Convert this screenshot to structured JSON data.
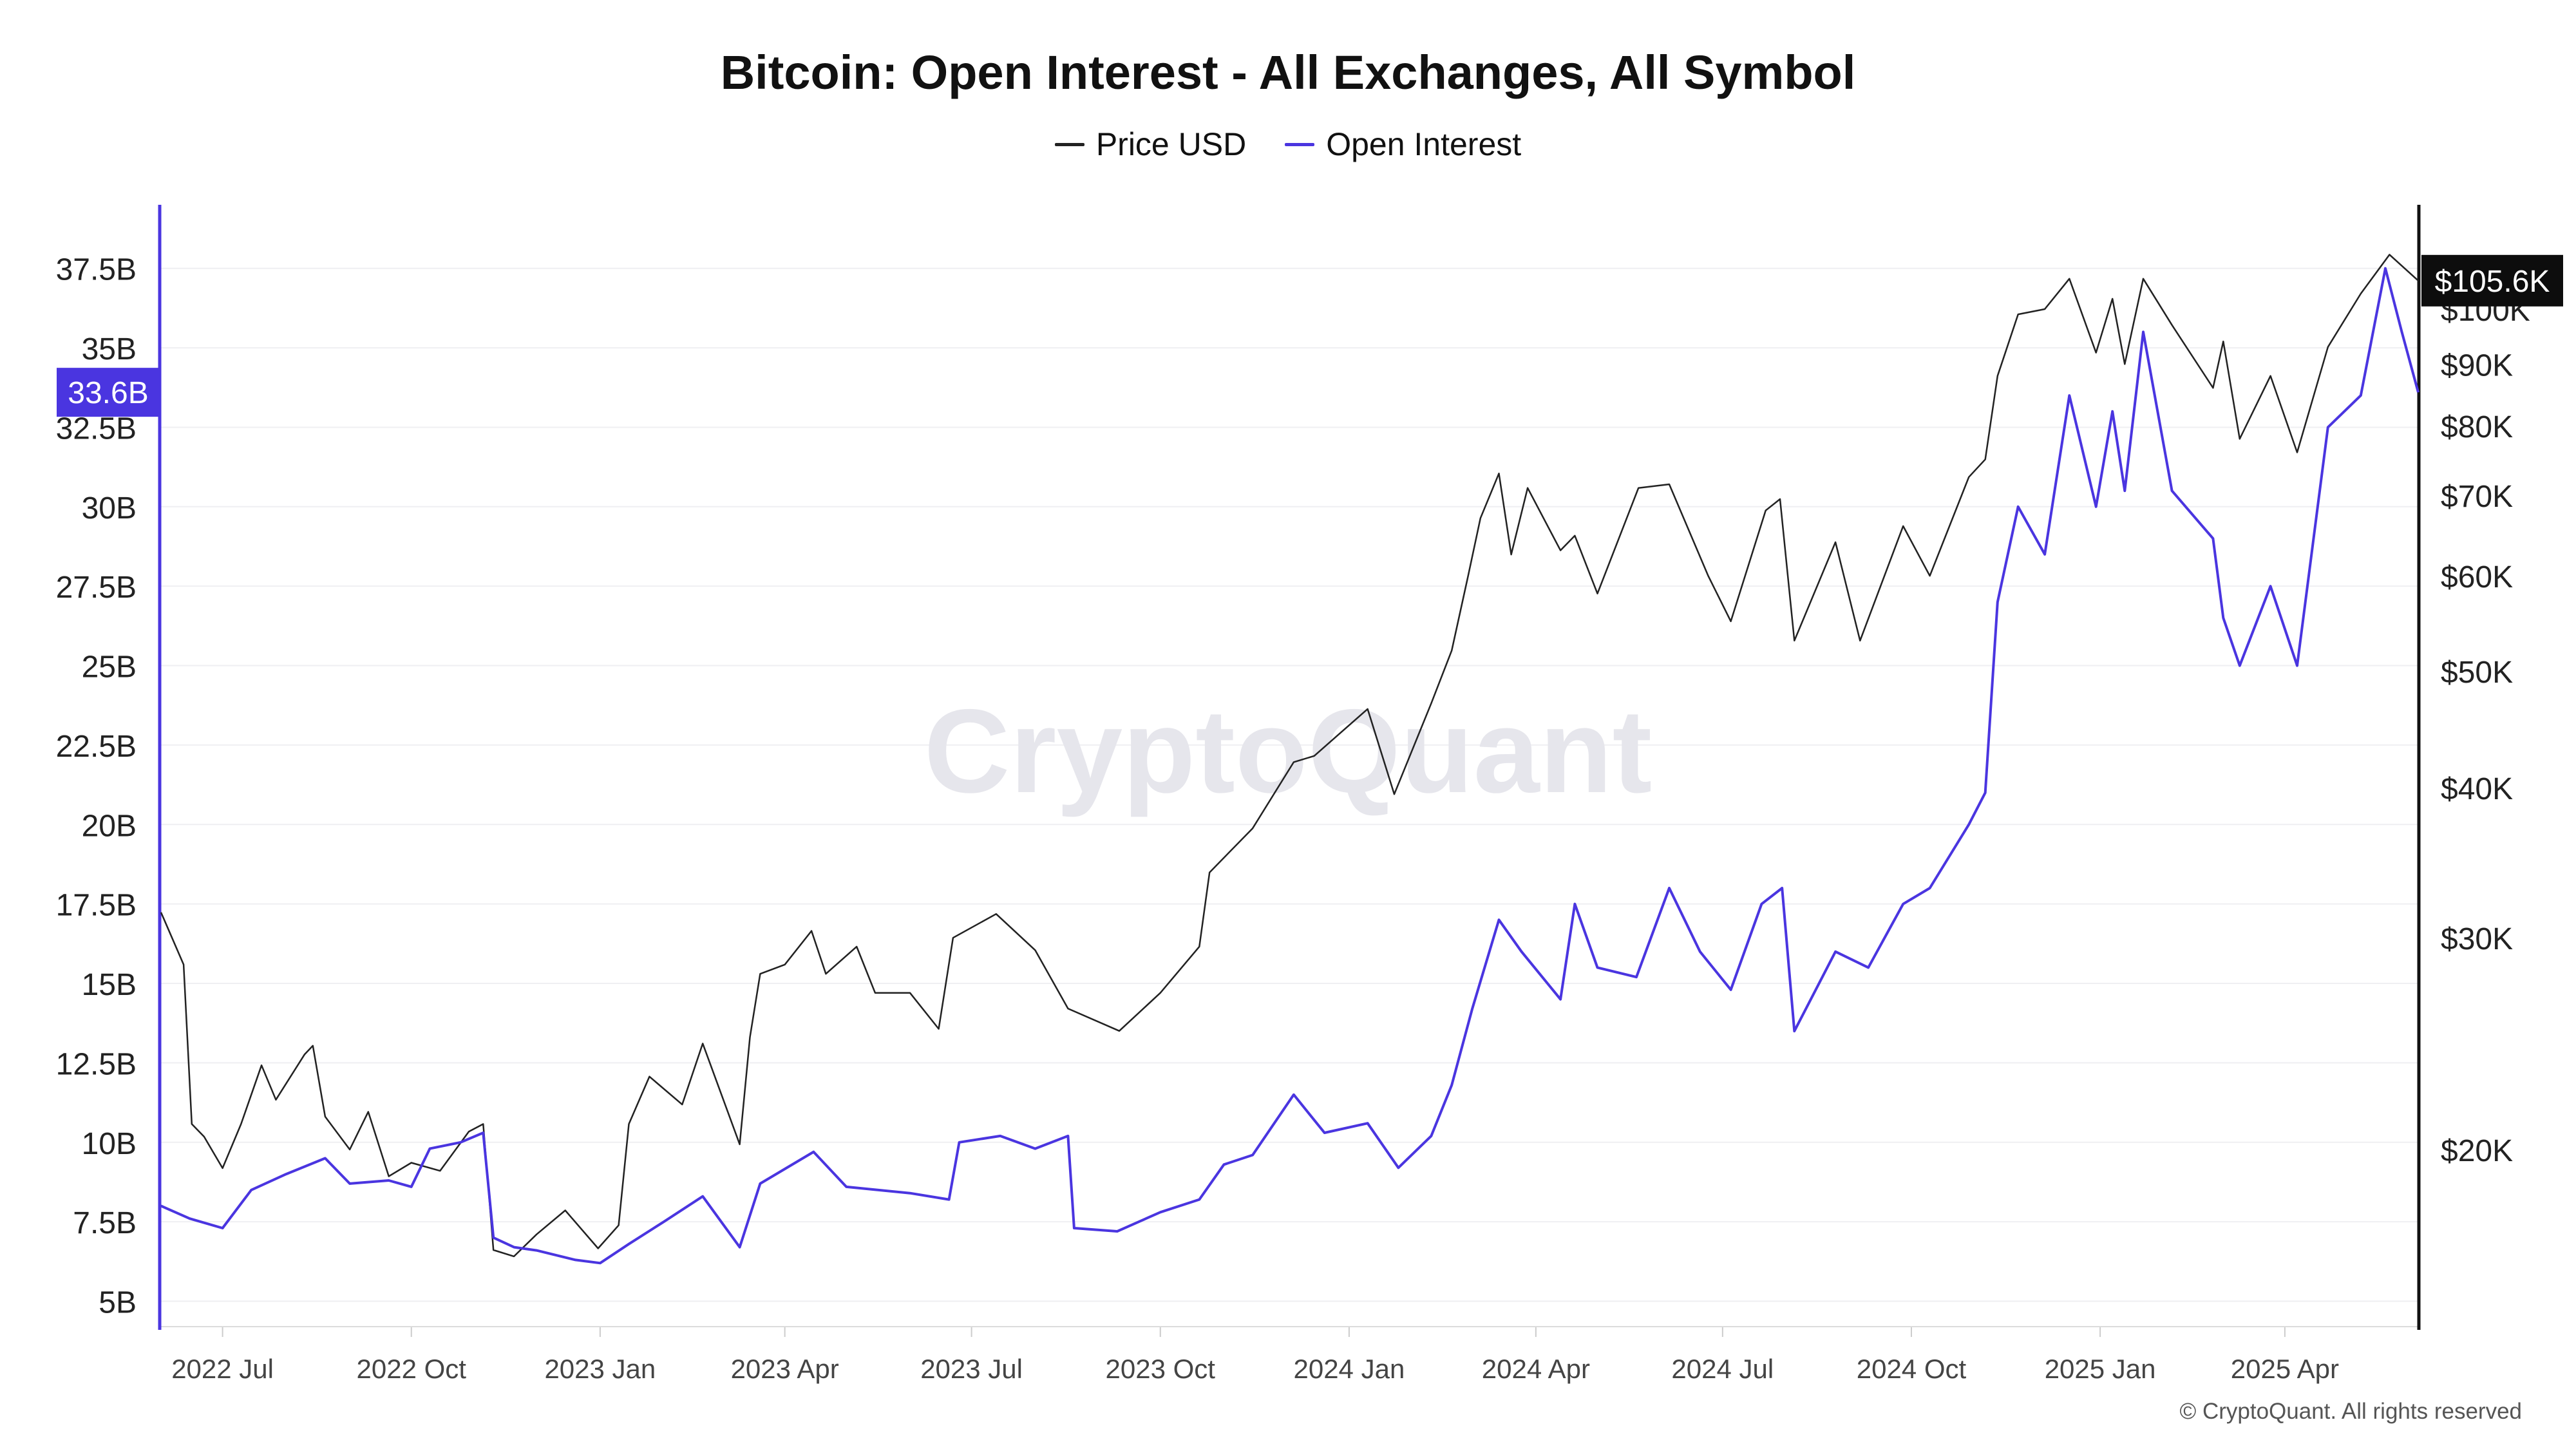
{
  "title": "Bitcoin: Open Interest - All Exchanges, All Symbol",
  "legend": [
    {
      "label": "Price USD",
      "color": "#222222"
    },
    {
      "label": "Open Interest",
      "color": "#4a35e0"
    }
  ],
  "footer": "© CryptoQuant. All rights reserved",
  "watermark": "CryptoQuant",
  "chart_data": {
    "type": "line",
    "x_ticks": [
      "2022 Jul",
      "2022 Oct",
      "2023 Jan",
      "2023 Apr",
      "2023 Jul",
      "2023 Oct",
      "2024 Jan",
      "2024 Apr",
      "2024 Jul",
      "2024 Oct",
      "2025 Jan",
      "2025 Apr"
    ],
    "x_range": [
      "2022-06-01",
      "2025-06-05"
    ],
    "left_axis": {
      "label": "",
      "ticks": [
        "5B",
        "7.5B",
        "10B",
        "12.5B",
        "15B",
        "17.5B",
        "20B",
        "22.5B",
        "25B",
        "27.5B",
        "30B",
        "32.5B",
        "35B",
        "37.5B"
      ],
      "range_billion": [
        4.2,
        39.5
      ],
      "current": "33.6B"
    },
    "right_axis": {
      "label": "",
      "scale": "log",
      "ticks": [
        "$20K",
        "$30K",
        "$40K",
        "$50K",
        "$60K",
        "$70K",
        "$80K",
        "$90K",
        "$100K"
      ],
      "current": "$105.6K"
    },
    "grid": true,
    "legend_position": "top-center",
    "series": [
      {
        "name": "Price USD",
        "axis": "right",
        "color": "#222222",
        "unit": "USD",
        "points": [
          [
            "2022-06-01",
            31500
          ],
          [
            "2022-06-12",
            28500
          ],
          [
            "2022-06-16",
            21000
          ],
          [
            "2022-06-22",
            20500
          ],
          [
            "2022-07-01",
            19300
          ],
          [
            "2022-07-10",
            21000
          ],
          [
            "2022-07-20",
            23500
          ],
          [
            "2022-07-27",
            22000
          ],
          [
            "2022-08-10",
            24000
          ],
          [
            "2022-08-14",
            24400
          ],
          [
            "2022-08-20",
            21300
          ],
          [
            "2022-09-01",
            20000
          ],
          [
            "2022-09-10",
            21500
          ],
          [
            "2022-09-20",
            19000
          ],
          [
            "2022-10-01",
            19500
          ],
          [
            "2022-10-15",
            19200
          ],
          [
            "2022-10-29",
            20700
          ],
          [
            "2022-11-05",
            21000
          ],
          [
            "2022-11-10",
            16500
          ],
          [
            "2022-11-20",
            16300
          ],
          [
            "2022-12-01",
            17000
          ],
          [
            "2022-12-15",
            17800
          ],
          [
            "2022-12-31",
            16550
          ],
          [
            "2023-01-10",
            17300
          ],
          [
            "2023-01-15",
            21000
          ],
          [
            "2023-01-25",
            23000
          ],
          [
            "2023-02-10",
            21800
          ],
          [
            "2023-02-20",
            24500
          ],
          [
            "2023-03-10",
            20200
          ],
          [
            "2023-03-15",
            24800
          ],
          [
            "2023-03-20",
            28000
          ],
          [
            "2023-04-01",
            28500
          ],
          [
            "2023-04-14",
            30400
          ],
          [
            "2023-04-21",
            28000
          ],
          [
            "2023-05-06",
            29500
          ],
          [
            "2023-05-15",
            27000
          ],
          [
            "2023-06-01",
            27000
          ],
          [
            "2023-06-15",
            25200
          ],
          [
            "2023-06-22",
            30000
          ],
          [
            "2023-07-13",
            31400
          ],
          [
            "2023-08-01",
            29300
          ],
          [
            "2023-08-17",
            26200
          ],
          [
            "2023-09-11",
            25100
          ],
          [
            "2023-10-01",
            27000
          ],
          [
            "2023-10-20",
            29500
          ],
          [
            "2023-10-25",
            34000
          ],
          [
            "2023-11-15",
            37000
          ],
          [
            "2023-12-05",
            42000
          ],
          [
            "2023-12-15",
            42500
          ],
          [
            "2024-01-10",
            46500
          ],
          [
            "2024-01-23",
            39500
          ],
          [
            "2024-02-10",
            47000
          ],
          [
            "2024-02-20",
            52000
          ],
          [
            "2024-02-28",
            60000
          ],
          [
            "2024-03-05",
            67000
          ],
          [
            "2024-03-14",
            73000
          ],
          [
            "2024-03-20",
            62500
          ],
          [
            "2024-03-28",
            71000
          ],
          [
            "2024-04-13",
            63000
          ],
          [
            "2024-04-20",
            64800
          ],
          [
            "2024-05-01",
            58000
          ],
          [
            "2024-05-21",
            71000
          ],
          [
            "2024-06-05",
            71500
          ],
          [
            "2024-06-24",
            60000
          ],
          [
            "2024-07-05",
            55000
          ],
          [
            "2024-07-22",
            68000
          ],
          [
            "2024-07-29",
            69500
          ],
          [
            "2024-08-05",
            53000
          ],
          [
            "2024-08-25",
            64000
          ],
          [
            "2024-09-06",
            53000
          ],
          [
            "2024-09-27",
            66000
          ],
          [
            "2024-10-10",
            60000
          ],
          [
            "2024-10-29",
            72500
          ],
          [
            "2024-11-06",
            75000
          ],
          [
            "2024-11-12",
            88000
          ],
          [
            "2024-11-22",
            99000
          ],
          [
            "2024-12-05",
            100000
          ],
          [
            "2024-12-17",
            106000
          ],
          [
            "2024-12-30",
            92000
          ],
          [
            "2025-01-07",
            102000
          ],
          [
            "2025-01-13",
            90000
          ],
          [
            "2025-01-22",
            106000
          ],
          [
            "2025-02-05",
            97000
          ],
          [
            "2025-02-25",
            86000
          ],
          [
            "2025-03-02",
            94000
          ],
          [
            "2025-03-10",
            78000
          ],
          [
            "2025-03-25",
            88000
          ],
          [
            "2025-04-07",
            76000
          ],
          [
            "2025-04-22",
            93000
          ],
          [
            "2025-05-08",
            103000
          ],
          [
            "2025-05-22",
            111000
          ],
          [
            "2025-06-05",
            105600
          ]
        ]
      },
      {
        "name": "Open Interest",
        "axis": "left",
        "color": "#4a35e0",
        "unit": "billion USD",
        "points": [
          [
            "2022-06-01",
            8.0
          ],
          [
            "2022-06-15",
            7.6
          ],
          [
            "2022-07-01",
            7.3
          ],
          [
            "2022-07-15",
            8.5
          ],
          [
            "2022-08-01",
            9.0
          ],
          [
            "2022-08-20",
            9.5
          ],
          [
            "2022-09-01",
            8.7
          ],
          [
            "2022-09-20",
            8.8
          ],
          [
            "2022-10-01",
            8.6
          ],
          [
            "2022-10-10",
            9.8
          ],
          [
            "2022-10-25",
            10.0
          ],
          [
            "2022-11-05",
            10.3
          ],
          [
            "2022-11-10",
            7.0
          ],
          [
            "2022-11-20",
            6.7
          ],
          [
            "2022-12-01",
            6.6
          ],
          [
            "2022-12-20",
            6.3
          ],
          [
            "2023-01-01",
            6.2
          ],
          [
            "2023-01-15",
            6.8
          ],
          [
            "2023-02-01",
            7.5
          ],
          [
            "2023-02-20",
            8.3
          ],
          [
            "2023-03-10",
            6.7
          ],
          [
            "2023-03-20",
            8.7
          ],
          [
            "2023-04-15",
            9.7
          ],
          [
            "2023-05-01",
            8.6
          ],
          [
            "2023-06-01",
            8.4
          ],
          [
            "2023-06-20",
            8.2
          ],
          [
            "2023-06-25",
            10.0
          ],
          [
            "2023-07-15",
            10.2
          ],
          [
            "2023-08-01",
            9.8
          ],
          [
            "2023-08-17",
            10.2
          ],
          [
            "2023-08-20",
            7.3
          ],
          [
            "2023-09-10",
            7.2
          ],
          [
            "2023-10-01",
            7.8
          ],
          [
            "2023-10-20",
            8.2
          ],
          [
            "2023-11-01",
            9.3
          ],
          [
            "2023-11-15",
            9.6
          ],
          [
            "2023-12-05",
            11.5
          ],
          [
            "2023-12-20",
            10.3
          ],
          [
            "2024-01-10",
            10.6
          ],
          [
            "2024-01-25",
            9.2
          ],
          [
            "2024-02-10",
            10.2
          ],
          [
            "2024-02-20",
            11.8
          ],
          [
            "2024-03-01",
            14.2
          ],
          [
            "2024-03-14",
            17.0
          ],
          [
            "2024-03-25",
            16.0
          ],
          [
            "2024-04-13",
            14.5
          ],
          [
            "2024-04-20",
            17.5
          ],
          [
            "2024-05-01",
            15.5
          ],
          [
            "2024-05-20",
            15.2
          ],
          [
            "2024-06-05",
            18.0
          ],
          [
            "2024-06-20",
            16.0
          ],
          [
            "2024-07-05",
            14.8
          ],
          [
            "2024-07-20",
            17.5
          ],
          [
            "2024-07-30",
            18.0
          ],
          [
            "2024-08-05",
            13.5
          ],
          [
            "2024-08-25",
            16.0
          ],
          [
            "2024-09-10",
            15.5
          ],
          [
            "2024-09-27",
            17.5
          ],
          [
            "2024-10-10",
            18.0
          ],
          [
            "2024-10-29",
            20.0
          ],
          [
            "2024-11-06",
            21.0
          ],
          [
            "2024-11-12",
            27.0
          ],
          [
            "2024-11-22",
            30.0
          ],
          [
            "2024-12-05",
            28.5
          ],
          [
            "2024-12-17",
            33.5
          ],
          [
            "2024-12-30",
            30.0
          ],
          [
            "2025-01-07",
            33.0
          ],
          [
            "2025-01-13",
            30.5
          ],
          [
            "2025-01-22",
            35.5
          ],
          [
            "2025-02-05",
            30.5
          ],
          [
            "2025-02-25",
            29.0
          ],
          [
            "2025-03-02",
            26.5
          ],
          [
            "2025-03-10",
            25.0
          ],
          [
            "2025-03-25",
            27.5
          ],
          [
            "2025-04-07",
            25.0
          ],
          [
            "2025-04-22",
            32.5
          ],
          [
            "2025-05-08",
            33.5
          ],
          [
            "2025-05-20",
            37.5
          ],
          [
            "2025-05-28",
            35.5
          ],
          [
            "2025-06-05",
            33.6
          ]
        ]
      }
    ]
  }
}
